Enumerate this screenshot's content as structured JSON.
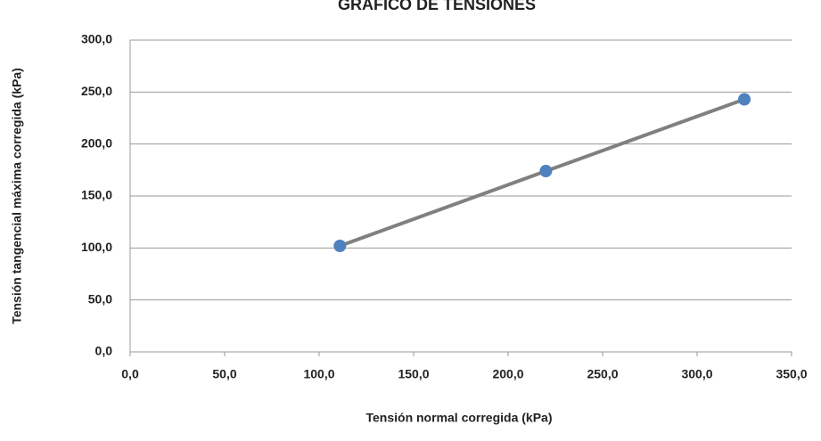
{
  "chart_data": {
    "type": "scatter",
    "title": "GRÁFICO DE TENSIONES",
    "x_label": "Tensión normal corregida (kPa)",
    "y_label": "Tensión tangencial máxima corregida (kPa)",
    "x": [
      111,
      220,
      325
    ],
    "values": [
      102,
      174,
      243
    ],
    "color": "#4f81bd",
    "line_color": "#808080",
    "xlim": [
      0,
      350
    ],
    "ylim": [
      0,
      300
    ],
    "xticks": [
      {
        "value": 0,
        "label": "0,0"
      },
      {
        "value": 50,
        "label": "50,0"
      },
      {
        "value": 100,
        "label": "100,0"
      },
      {
        "value": 150,
        "label": "150,0"
      },
      {
        "value": 200,
        "label": "200,0"
      },
      {
        "value": 250,
        "label": "250,0"
      },
      {
        "value": 300,
        "label": "300,0"
      },
      {
        "value": 350,
        "label": "350,0"
      }
    ],
    "yticks": [
      {
        "value": 0,
        "label": "0,0"
      },
      {
        "value": 50,
        "label": "50,0"
      },
      {
        "value": 100,
        "label": "100,0"
      },
      {
        "value": 150,
        "label": "150,0"
      },
      {
        "value": 200,
        "label": "200,0"
      },
      {
        "value": 250,
        "label": "250,0"
      },
      {
        "value": 300,
        "label": "300,0"
      }
    ],
    "grid": true
  }
}
